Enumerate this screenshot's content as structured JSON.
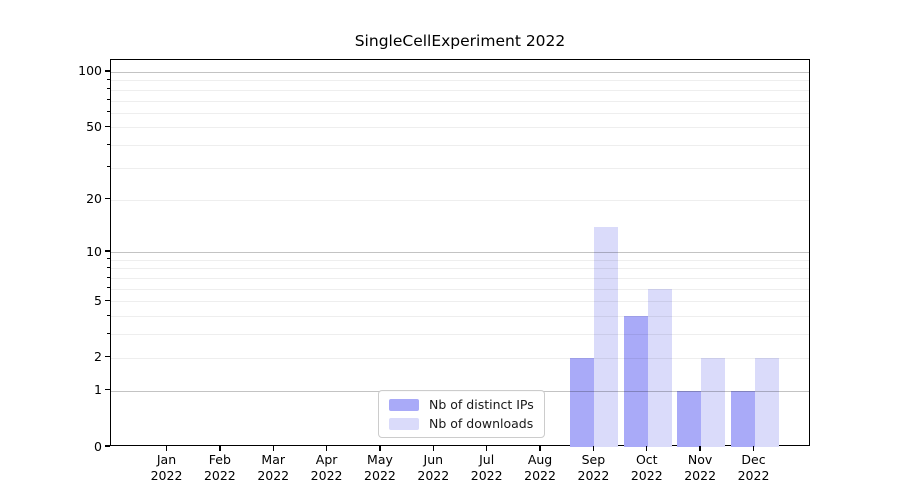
{
  "figure": {
    "background": "#ffffff"
  },
  "chart_data": {
    "type": "bar",
    "title": "SingleCellExperiment 2022",
    "categories": [
      "Jan 2022",
      "Feb 2022",
      "Mar 2022",
      "Apr 2022",
      "May 2022",
      "Jun 2022",
      "Jul 2022",
      "Aug 2022",
      "Sep 2022",
      "Oct 2022",
      "Nov 2022",
      "Dec 2022"
    ],
    "series": [
      {
        "name": "Nb of distinct IPs",
        "color": "#a9aaf8",
        "values": [
          0,
          0,
          0,
          0,
          0,
          0,
          0,
          0,
          2,
          4,
          1,
          1
        ]
      },
      {
        "name": "Nb of downloads",
        "color": "#dadbfa",
        "values": [
          0,
          0,
          0,
          0,
          0,
          0,
          0,
          0,
          14,
          6,
          2,
          2
        ]
      }
    ],
    "xlabel": "",
    "ylabel": "",
    "yscale": "log1p",
    "ylim": [
      0,
      116
    ],
    "yticks": [
      0,
      1,
      2,
      5,
      10,
      20,
      50,
      100
    ],
    "grid": {
      "decade_lines": [
        1,
        10,
        100
      ],
      "sub_lines": [
        2,
        3,
        4,
        5,
        6,
        7,
        8,
        9,
        20,
        30,
        40,
        50,
        60,
        70,
        80,
        90
      ]
    },
    "legend": {
      "position": "lower center",
      "items": [
        "Nb of distinct IPs",
        "Nb of downloads"
      ]
    }
  }
}
